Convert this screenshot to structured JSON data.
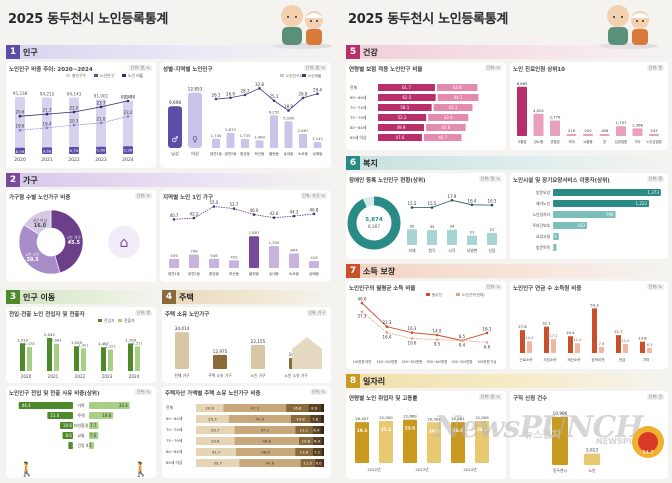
{
  "left": {
    "title": "2025 동두천시 노인등록통계",
    "sections": {
      "s1": {
        "num": "1",
        "label": "인구"
      },
      "s2": {
        "num": "2",
        "label": "가구"
      },
      "s3": {
        "num": "3",
        "label": "인구 이동"
      },
      "s4": {
        "num": "4",
        "label": "주택"
      }
    },
    "pop_trend": {
      "title": "노인인구 비중 추이: 2020~2024",
      "unit": "단위: 명, %",
      "years": [
        "2020",
        "2021",
        "2022",
        "2023",
        "2024"
      ],
      "totals": [
        "95,238",
        "94,212",
        "94,143",
        "91,001",
        "89,468"
      ],
      "elderly": [
        "18,592",
        "19,691",
        "20,709",
        "21,607",
        "22,961"
      ],
      "ratio_a": [
        "20.6",
        "21.3",
        "22.0",
        "23.7",
        "25.7"
      ],
      "ratio_b": [
        "18.6",
        "19.4",
        "20.3",
        "21.0",
        "23.2"
      ],
      "legend": [
        "총인구수",
        "노인인구",
        "노인 비율"
      ]
    },
    "sex_age": {
      "title": "성별·지역별 노인인구",
      "unit": "단위: 명, %",
      "sex": [
        {
          "label": "남성",
          "value": "9,698"
        },
        {
          "label": "여성",
          "value": "12,853"
        }
      ],
      "areas": [
        "생연1동",
        "생연2동",
        "중앙동",
        "보산동",
        "불현동",
        "송내동",
        "소요동",
        "상패동"
      ],
      "counts": [
        "1,745",
        "2,873",
        "1,735",
        "1,469",
        "6,252",
        "5,096",
        "2,667",
        "1,142"
      ],
      "ratios": [
        "26.1",
        "26.9",
        "28.7",
        "32.8",
        "25.1",
        "18.9",
        "26.8",
        "29.4"
      ],
      "legend": [
        "노인인구수",
        "노인비율"
      ]
    },
    "household_type": {
      "title": "가구형 수별 노인가구 비중",
      "unit": "단위: %",
      "slices": [
        {
          "label": "1인 가구",
          "value": 45.5,
          "color": "#6b3f8a"
        },
        {
          "label": "2인 가구",
          "value": 38.5,
          "color": "#a88cc8"
        },
        {
          "label": "3인 이상",
          "value": 16.0,
          "color": "#d6c9e6"
        }
      ]
    },
    "single_households": {
      "title": "지역별 노인 1인 가구",
      "unit": "단위: 가구, %",
      "areas": [
        "생연1동",
        "생연2동",
        "중앙동",
        "보산동",
        "불현동",
        "송내동",
        "소요동",
        "상패동"
      ],
      "counts": [
        "539",
        "798",
        "546",
        "452",
        "1,887",
        "1,300",
        "864",
        "418"
      ],
      "ratios": [
        "40.7",
        "42.2",
        "55.0",
        "52.7",
        "46.0",
        "42.6",
        "44.3",
        "46.8"
      ]
    },
    "migration": {
      "title": "전입·전출 노인 전입자 및 전출자",
      "unit": "단위: 명",
      "years": [
        "2020",
        "2021",
        "2022",
        "2023",
        "2024"
      ],
      "in_vals": [
        "1,713",
        "2,042",
        "1,529",
        "1,467",
        "1,704"
      ],
      "out_vals": [
        "1,478",
        "1,684",
        "1,401",
        "1,325",
        "1,521"
      ],
      "legend": [
        "전입자",
        "전출자"
      ]
    },
    "migration_reason": {
      "title": "노인인구 전입 및 전출 사유 비중(상위)",
      "unit": "단위: %",
      "rows": [
        {
          "label": "가족",
          "in": "44.4",
          "out": "33.3"
        },
        {
          "label": "주택",
          "in": "21.0",
          "out": "19.8"
        },
        {
          "label": "자연환경",
          "in": "10.6",
          "out": "7.7"
        },
        {
          "label": "교통",
          "in": "8.6",
          "out": "7.6"
        },
        {
          "label": "건강",
          "in": "3.8",
          "out": "4.1"
        }
      ]
    },
    "housing": {
      "title": "주택 소유 노인가구",
      "unit": "단위: 가구",
      "bars": [
        {
          "label": "전체 가구",
          "value": "34,014"
        },
        {
          "label": "주택 소유 가구",
          "value": "12,975"
        },
        {
          "label": "노인 가구",
          "value": "22,155"
        },
        {
          "label": "노인 소유 가구",
          "value": "10,088"
        }
      ]
    },
    "housing_value": {
      "title": "주택자산 가액별 주택 소유 노인가구 비중",
      "unit": "단위: %",
      "rows": [
        {
          "label": "전체",
          "segs": [
            "20.6",
            "47.3",
            "16.8",
            "8.9",
            "2.9"
          ]
        },
        {
          "label": "60~64세",
          "segs": [
            "25.3",
            "47.9",
            "14.8",
            "7.8",
            "2.9"
          ]
        },
        {
          "label": "70~74세",
          "segs": [
            "29.7",
            "47.2",
            "13.1",
            "6.4",
            "2.7"
          ]
        },
        {
          "label": "75~79세",
          "segs": [
            "29.8",
            "49.8",
            "10.8",
            "6.4",
            "2.2"
          ]
        },
        {
          "label": "80~84세",
          "segs": [
            "31.7",
            "46.8",
            "13.8",
            "7.1",
            "1.9"
          ]
        },
        {
          "label": "85세 이상",
          "segs": [
            "33.7",
            "47.6",
            "11.0",
            "6.0",
            "1.2"
          ]
        }
      ]
    }
  },
  "right": {
    "title": "2025 동두천시 노인등록통계",
    "sections": {
      "s5": {
        "num": "5",
        "label": "건강"
      },
      "s6": {
        "num": "6",
        "label": "복지"
      },
      "s7": {
        "num": "7",
        "label": "소득 보장"
      },
      "s8": {
        "num": "8",
        "label": "일자리"
      }
    },
    "health_ins": {
      "title": "연령별 보험 적용 노인인구 비율",
      "unit": "단위: %",
      "rows": [
        {
          "label": "전체",
          "a": "61.7",
          "b": "43.8"
        },
        {
          "label": "65~69세",
          "a": "62.5",
          "b": "44.1"
        },
        {
          "label": "70~74세",
          "a": "58.1",
          "b": "42.1"
        },
        {
          "label": "75~79세",
          "a": "52.2",
          "b": "43.4"
        },
        {
          "label": "80~84세",
          "a": "49.9",
          "b": "42.8"
        },
        {
          "label": "85세 이상",
          "a": "47.6",
          "b": "40.7"
        }
      ]
    },
    "medical": {
      "title": "노인 진료인원 상위10",
      "unit": "단위: 명",
      "bars": [
        {
          "label": "고혈압",
          "value": "8,865"
        },
        {
          "label": "당뇨병",
          "value": "4,002"
        },
        {
          "label": "관절염",
          "value": "2,779"
        },
        {
          "label": "치매",
          "value": "210"
        },
        {
          "label": "뇌졸중",
          "value": "200"
        },
        {
          "label": "암",
          "value": "166"
        },
        {
          "label": "심장질환",
          "value": "1,757"
        },
        {
          "label": "기타",
          "value": "1,366"
        },
        {
          "label": "노인성질환",
          "value": "247"
        }
      ]
    },
    "welfare": {
      "title": "장애인 등록 노인인구 현황(상위)",
      "unit": "단위: 명, %",
      "donut_val": "5,874",
      "donut_total": "6,307",
      "ratios": [
        "15.5",
        "15.5",
        "17.9",
        "16.4",
        "16.3"
      ],
      "cats": [
        "지체",
        "청각",
        "시각",
        "뇌병변",
        "신장"
      ],
      "counts": [
        "35",
        "33",
        "34",
        "21",
        "27"
      ]
    },
    "facility": {
      "title": "노인시설 및 장기요양서비스 이용자(상위)",
      "unit": "단위: 명",
      "rows": [
        {
          "label": "방문요양",
          "value": "1,373"
        },
        {
          "label": "재가노인",
          "value": "1,222"
        },
        {
          "label": "노인일자리",
          "value": "796"
        },
        {
          "label": "주야간보호",
          "value": "433"
        },
        {
          "label": "요양시설",
          "value": "74"
        },
        {
          "label": "방문목욕",
          "value": "44"
        }
      ]
    },
    "income": {
      "title": "노인인구의 월평균 소득 비율",
      "unit": "단위: %",
      "bins": [
        "100만원 미만",
        "100~200만원",
        "200~300만원",
        "300~400만원",
        "400~500만원",
        "500만원 이상"
      ],
      "a": [
        "46.0",
        "22.3",
        "16.3",
        "14.0",
        "8.5",
        "16.1"
      ],
      "b": [
        "37.3",
        "16.4",
        "10.6",
        "9.5",
        "8.4",
        "6.6"
      ],
      "legend": [
        "동두천",
        "노인인구(전체)"
      ]
    },
    "income_type": {
      "title": "노인인구 연금 수 소득원 비중",
      "unit": "단위: %",
      "cats": [
        "근로소득",
        "사업소득",
        "재산소득",
        "공적이전",
        "연금",
        "기타"
      ],
      "a": [
        "27.8",
        "32.1",
        "20.4",
        "54.3",
        "21.7",
        "13.8"
      ],
      "b": [
        "14.5",
        "17.2",
        "11.9",
        "7.6",
        "11.0",
        "6.3"
      ]
    },
    "jobs": {
      "title": "연령별 노인 취업자 및 고용률",
      "unit": "단위: 명, %",
      "groups": [
        "2022년",
        "2023년",
        "2024년"
      ],
      "vals": [
        "20,457",
        "21,000",
        "21,669",
        "20,304",
        "20,461",
        "21,009"
      ],
      "rates": [
        "19.3",
        "25.3",
        "23.6",
        "24.5",
        "26.9",
        "24.1"
      ]
    },
    "job_openings": {
      "title": "구직 신청 건수",
      "unit": "단위: 건",
      "bars": [
        {
          "label": "동두천시",
          "value": "10,990"
        },
        {
          "label": "노인",
          "value": "2,613"
        }
      ]
    },
    "watermark": {
      "main": "NewsPUNCH",
      "sub": "뉴스펀치",
      "corner": "NEWSPUNCH"
    },
    "logo_value": "94.7"
  },
  "colors": {
    "s1": "#5a4ea8",
    "s2": "#7a4a9a",
    "s3": "#4e8a2c",
    "s4": "#8a6a3a",
    "s5": "#b8306a",
    "s6": "#2a8a86",
    "s7": "#c8502a",
    "s8": "#c89a20"
  }
}
